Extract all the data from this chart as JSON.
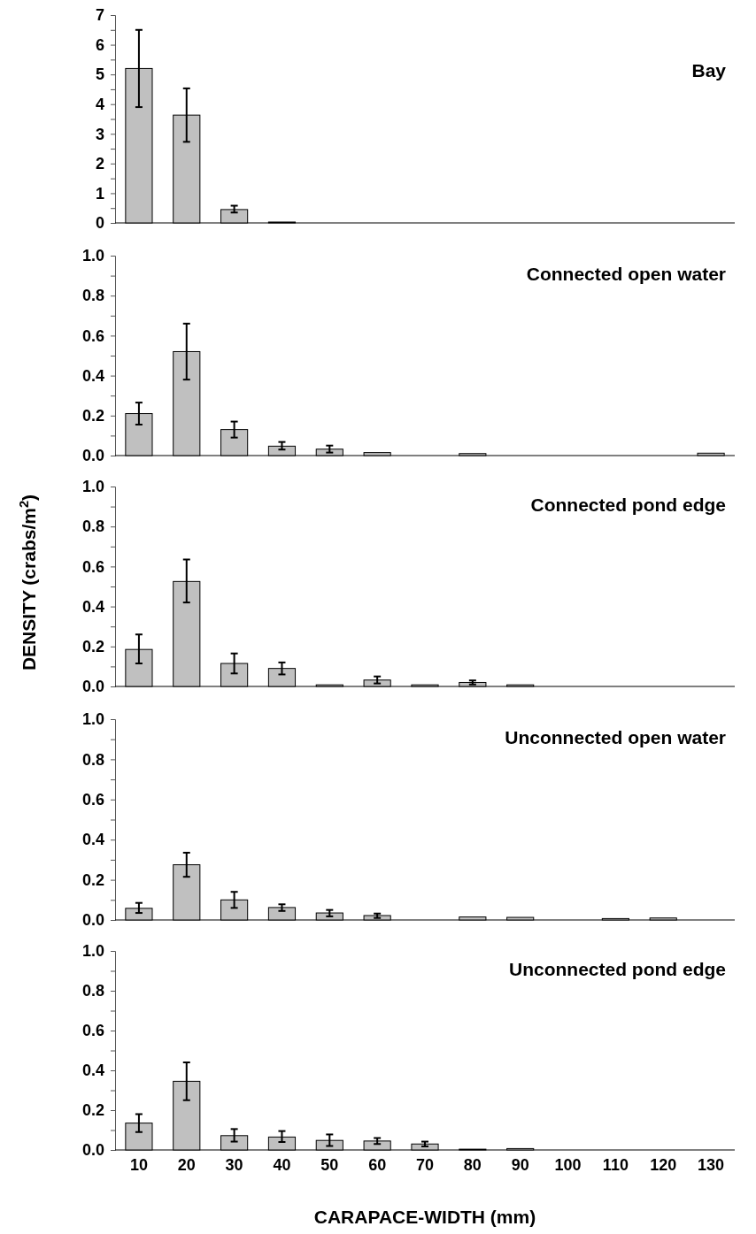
{
  "chart_data": [
    {
      "type": "bar",
      "title": "Bay",
      "categories": [
        "10",
        "20",
        "30",
        "40",
        "50",
        "60",
        "70",
        "80",
        "90",
        "100",
        "110",
        "120",
        "130"
      ],
      "color": "#c0c0c0",
      "values": [
        5.2,
        3.63,
        0.45,
        0.03,
        null,
        null,
        0,
        0,
        0,
        0,
        0,
        0,
        0
      ],
      "errors": [
        [
          3.9,
          6.5
        ],
        [
          2.73,
          4.53
        ],
        [
          0.35,
          0.58
        ],
        null,
        null,
        null,
        null,
        null,
        null,
        null,
        null,
        null,
        null
      ],
      "ylim": [
        0,
        7
      ],
      "yticks": [
        0,
        {
          "value": 0.5,
          "label": null
        },
        1,
        {
          "value": 1.5,
          "label": null
        },
        2,
        {
          "value": 2.5,
          "label": null
        },
        3,
        {
          "value": 3.5,
          "label": null
        },
        4,
        {
          "value": 4.5,
          "label": null
        },
        5,
        {
          "value": 5.5,
          "label": null
        },
        6,
        {
          "value": 6.5,
          "label": null
        },
        7
      ],
      "tick_labels": "y"
    },
    {
      "type": "bar",
      "title": "Connected open water",
      "categories": [
        "10",
        "20",
        "30",
        "40",
        "50",
        "60",
        "70",
        "80",
        "90",
        "100",
        "110",
        "120",
        "130"
      ],
      "color": "#c0c0c0",
      "values": [
        0.21,
        0.52,
        0.13,
        0.047,
        0.032,
        0.015,
        null,
        0.01,
        0,
        0,
        0,
        0,
        0.012
      ],
      "errors": [
        [
          0.155,
          0.265
        ],
        [
          0.38,
          0.66
        ],
        [
          0.09,
          0.17
        ],
        [
          0.03,
          0.068
        ],
        [
          0.015,
          0.05
        ],
        null,
        null,
        null,
        null,
        null,
        null,
        null,
        null
      ],
      "ylim": [
        0,
        1
      ],
      "yticks": [
        {
          "value": 0,
          "label": "0.0"
        },
        {
          "value": 0.1,
          "label": null
        },
        {
          "value": 0.2,
          "label": "0.2"
        },
        {
          "value": 0.3,
          "label": null
        },
        {
          "value": 0.4,
          "label": "0.4"
        },
        {
          "value": 0.5,
          "label": null
        },
        {
          "value": 0.6,
          "label": "0.6"
        },
        {
          "value": 0.7,
          "label": null
        },
        {
          "value": 0.8,
          "label": "0.8"
        },
        {
          "value": 0.9,
          "label": null
        },
        {
          "value": 1,
          "label": "1.0"
        }
      ],
      "tick_labels": "y"
    },
    {
      "type": "bar",
      "title": "Connected pond edge",
      "ylabel": "DENSITY (crabs/m$^{2}$)",
      "categories": [
        "10",
        "20",
        "30",
        "40",
        "50",
        "60",
        "70",
        "80",
        "90",
        "100",
        "110",
        "120",
        "130"
      ],
      "color": "#c0c0c0",
      "values": [
        0.185,
        0.525,
        0.115,
        0.09,
        0.008,
        0.032,
        0.008,
        0.02,
        0.008,
        0,
        0,
        0,
        0
      ],
      "errors": [
        [
          0.115,
          0.26
        ],
        [
          0.42,
          0.635
        ],
        [
          0.065,
          0.165
        ],
        [
          0.06,
          0.12
        ],
        null,
        [
          0.015,
          0.05
        ],
        null,
        [
          0.01,
          0.03
        ],
        null,
        null,
        null,
        null,
        null
      ],
      "ylim": [
        0,
        1
      ],
      "yticks": [
        {
          "value": 0,
          "label": "0.0"
        },
        {
          "value": 0.1,
          "label": null
        },
        {
          "value": 0.2,
          "label": "0.2"
        },
        {
          "value": 0.3,
          "label": null
        },
        {
          "value": 0.4,
          "label": "0.4"
        },
        {
          "value": 0.5,
          "label": null
        },
        {
          "value": 0.6,
          "label": "0.6"
        },
        {
          "value": 0.7,
          "label": null
        },
        {
          "value": 0.8,
          "label": "0.8"
        },
        {
          "value": 0.9,
          "label": null
        },
        {
          "value": 1,
          "label": "1.0"
        }
      ],
      "tick_labels": "y"
    },
    {
      "type": "bar",
      "title": "Unconnected open water",
      "categories": [
        "10",
        "20",
        "30",
        "40",
        "50",
        "60",
        "70",
        "80",
        "90",
        "100",
        "110",
        "120",
        "130"
      ],
      "color": "#c0c0c0",
      "values": [
        0.058,
        0.275,
        0.1,
        0.062,
        0.035,
        0.022,
        0,
        0.015,
        0.013,
        0,
        0.007,
        0.01,
        0
      ],
      "errors": [
        [
          0.035,
          0.085
        ],
        [
          0.215,
          0.335
        ],
        [
          0.06,
          0.14
        ],
        [
          0.045,
          0.078
        ],
        [
          0.018,
          0.05
        ],
        [
          0.01,
          0.032
        ],
        null,
        null,
        null,
        null,
        null,
        null,
        null
      ],
      "ylim": [
        0,
        1
      ],
      "yticks": [
        {
          "value": 0,
          "label": "0.0"
        },
        {
          "value": 0.1,
          "label": null
        },
        {
          "value": 0.2,
          "label": "0.2"
        },
        {
          "value": 0.3,
          "label": null
        },
        {
          "value": 0.4,
          "label": "0.4"
        },
        {
          "value": 0.5,
          "label": null
        },
        {
          "value": 0.6,
          "label": "0.6"
        },
        {
          "value": 0.7,
          "label": null
        },
        {
          "value": 0.8,
          "label": "0.8"
        },
        {
          "value": 0.9,
          "label": null
        },
        {
          "value": 1,
          "label": "1.0"
        }
      ],
      "tick_labels": "y"
    },
    {
      "type": "bar",
      "title": "Unconnected pond edge",
      "xlabel": "CARAPACE-WIDTH (mm)",
      "categories": [
        "10",
        "20",
        "30",
        "40",
        "50",
        "60",
        "70",
        "80",
        "90",
        "100",
        "110",
        "120",
        "130"
      ],
      "color": "#c0c0c0",
      "values": [
        0.135,
        0.345,
        0.072,
        0.065,
        0.048,
        0.045,
        0.03,
        0.004,
        0.007,
        0,
        0,
        0,
        0
      ],
      "errors": [
        [
          0.09,
          0.18
        ],
        [
          0.25,
          0.44
        ],
        [
          0.042,
          0.105
        ],
        [
          0.04,
          0.095
        ],
        [
          0.02,
          0.078
        ],
        [
          0.03,
          0.06
        ],
        [
          0.018,
          0.042
        ],
        null,
        null,
        null,
        null,
        null,
        null
      ],
      "ylim": [
        0,
        1
      ],
      "yticks": [
        {
          "value": 0,
          "label": "0.0"
        },
        {
          "value": 0.1,
          "label": null
        },
        {
          "value": 0.2,
          "label": "0.2"
        },
        {
          "value": 0.3,
          "label": null
        },
        {
          "value": 0.4,
          "label": "0.4"
        },
        {
          "value": 0.5,
          "label": null
        },
        {
          "value": 0.6,
          "label": "0.6"
        },
        {
          "value": 0.7,
          "label": null
        },
        {
          "value": 0.8,
          "label": "0.8"
        },
        {
          "value": 0.9,
          "label": null
        },
        {
          "value": 1,
          "label": "1.0"
        }
      ]
    }
  ]
}
